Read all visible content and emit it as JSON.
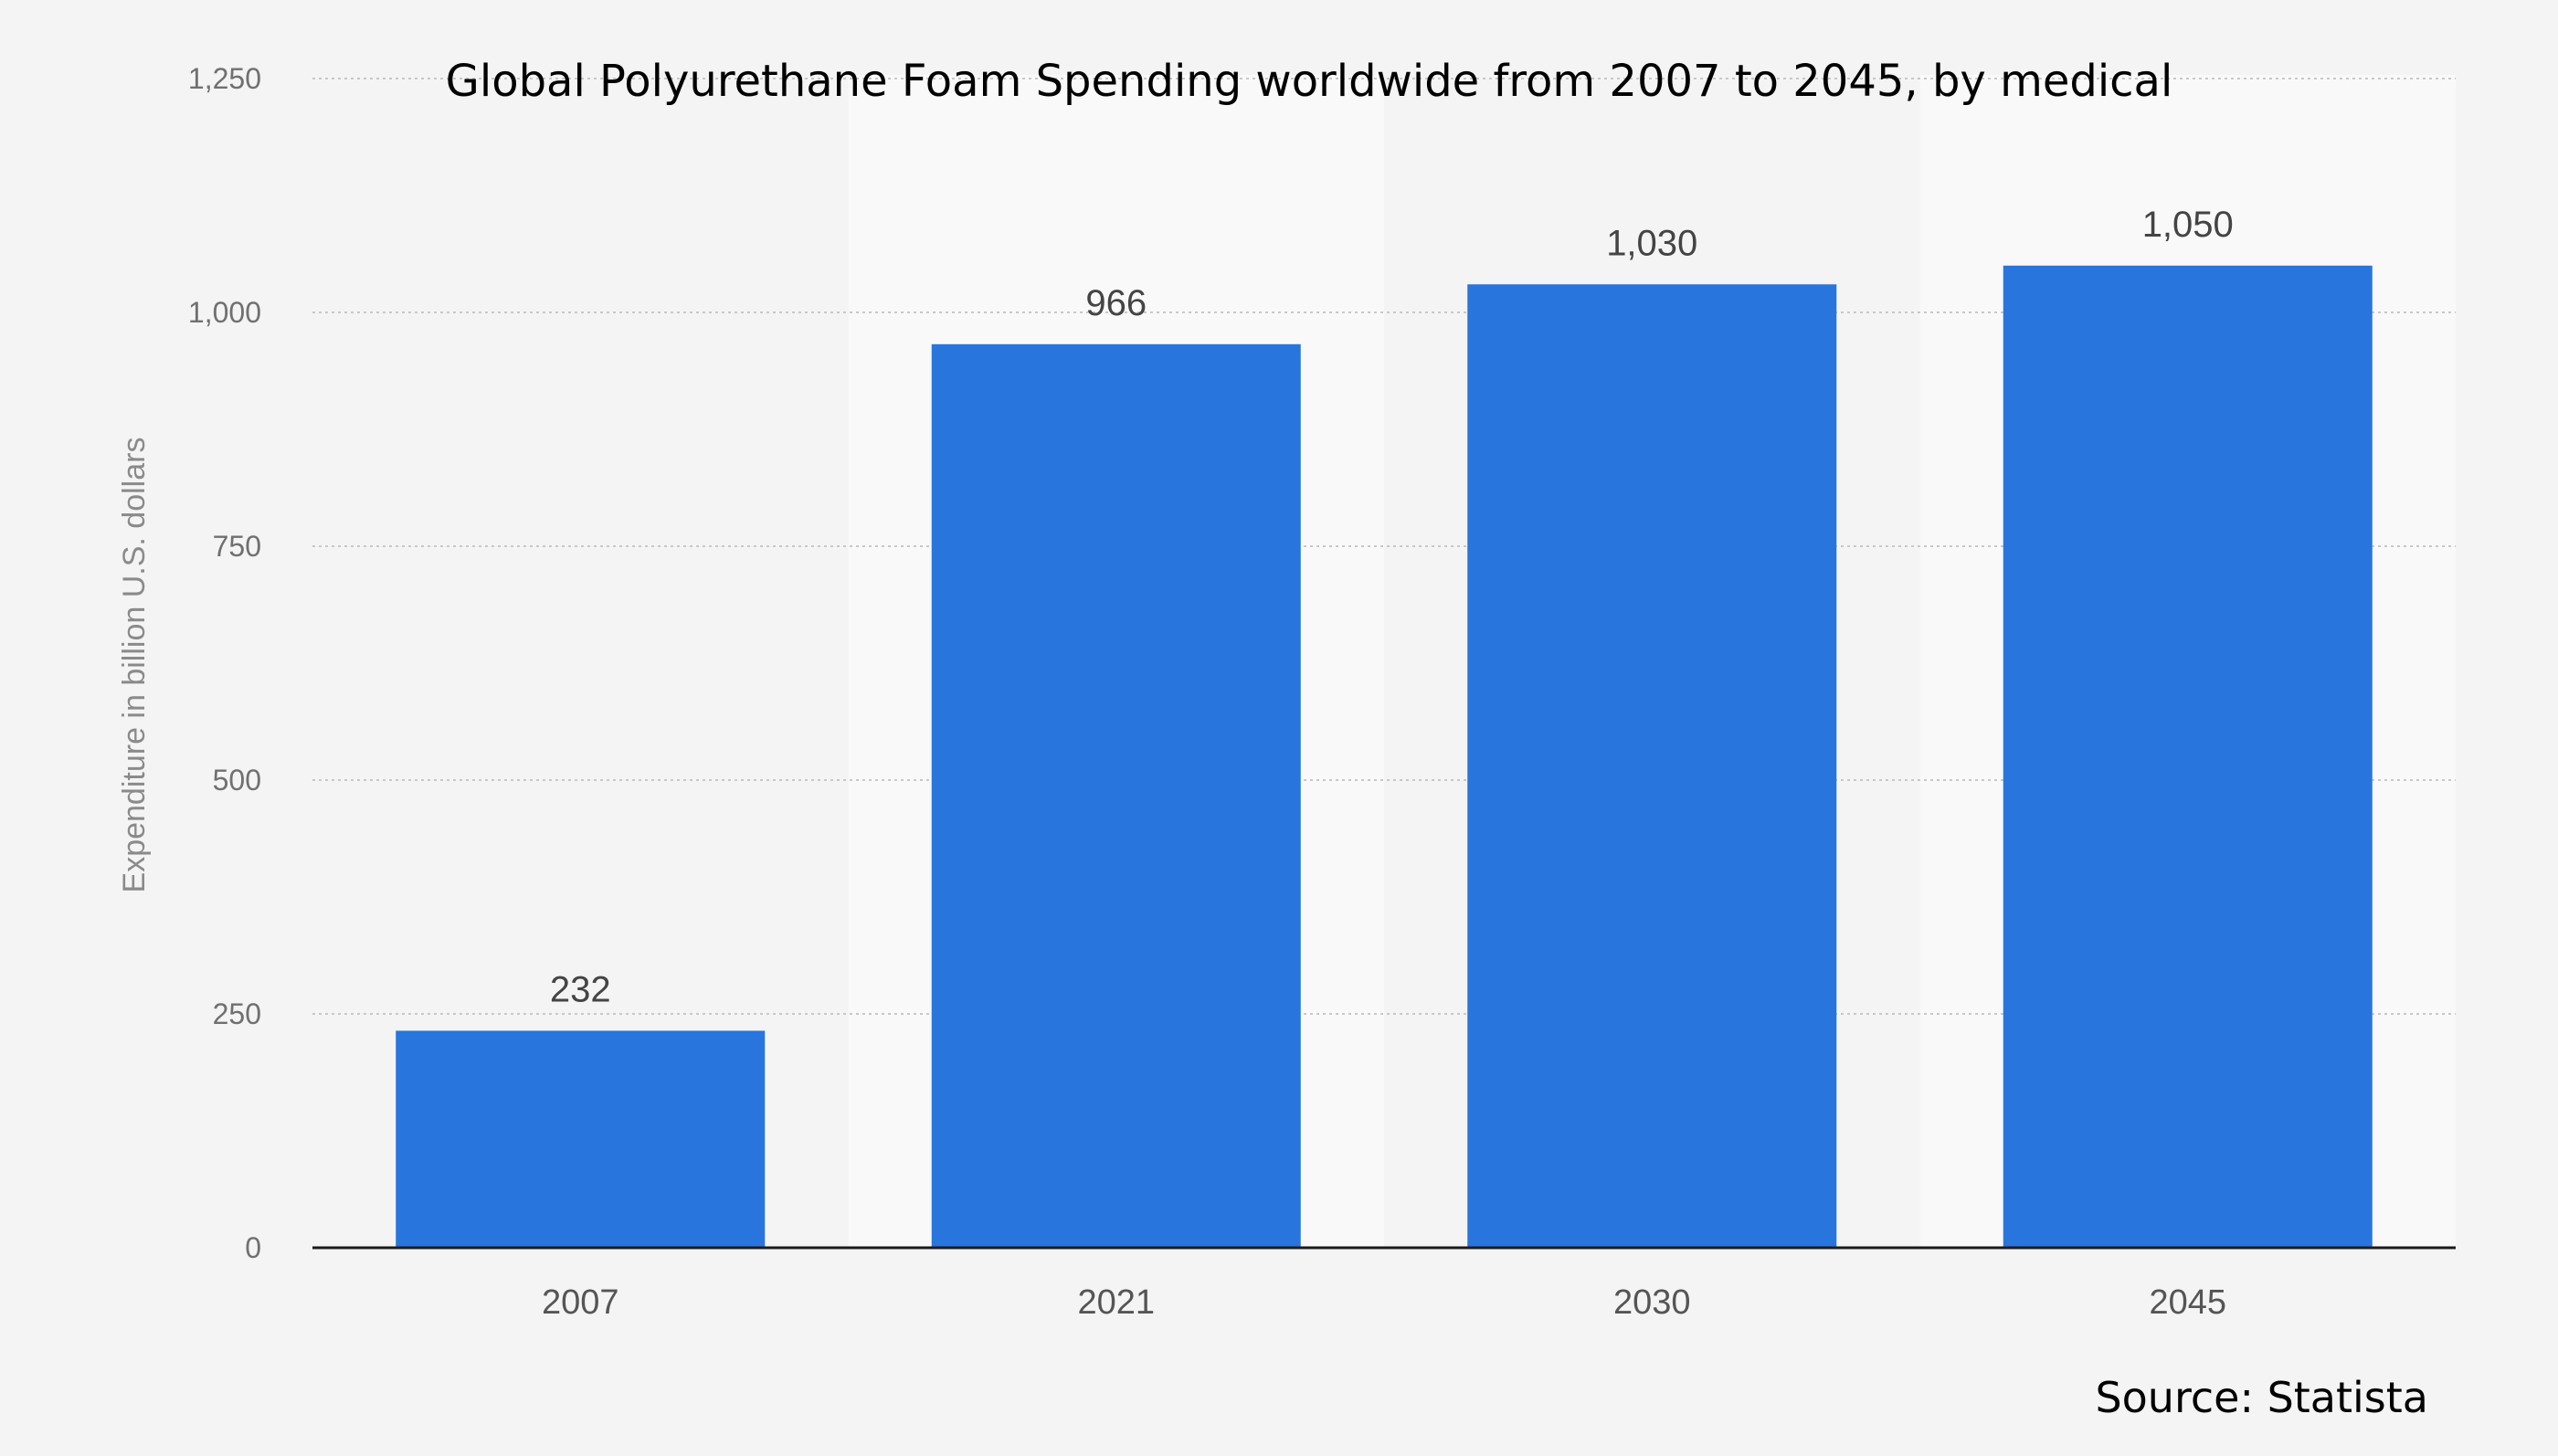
{
  "chart_data": {
    "type": "bar",
    "title": "Global Polyurethane Foam Spending worldwide from 2007 to 2045, by medical",
    "categories": [
      "2007",
      "2021",
      "2030",
      "2045"
    ],
    "series": [
      {
        "values": [
          232,
          966,
          1030,
          1050
        ],
        "value_labels": [
          "232",
          "966",
          "1,030",
          "1,050"
        ],
        "color": "#2876dd"
      }
    ],
    "xlabel": "",
    "ylabel": "Expenditure in billion U.S. dollars",
    "ylim": [
      0,
      1250
    ],
    "yticks": [
      0,
      250,
      500,
      750,
      1000,
      1250
    ],
    "ytick_labels": [
      "0",
      "250",
      "500",
      "750",
      "1,000",
      "1,250"
    ],
    "grid": true,
    "grid_style": "dotted",
    "legend": "none",
    "alternating_band_colors": [
      "#f4f4f4",
      "#f9f9f9"
    ]
  },
  "source": "Source: Statista"
}
